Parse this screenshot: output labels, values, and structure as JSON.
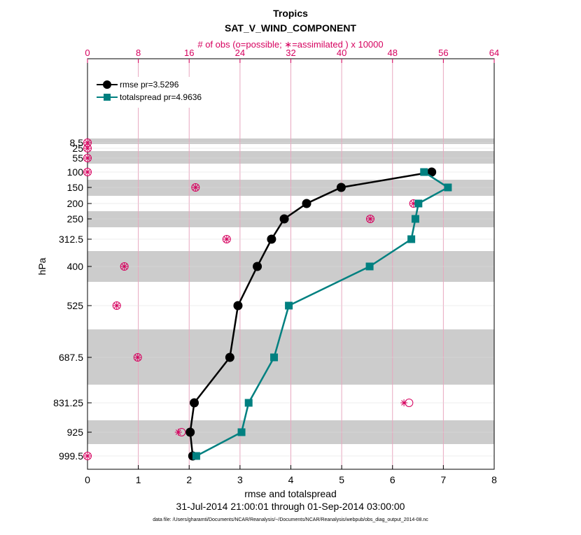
{
  "chart_data": {
    "type": "line",
    "title": "Tropics",
    "subtitle": "SAT_V_WIND_COMPONENT",
    "top_axis_label": "# of obs (o=possible; ∗=assimilated ) x 10000",
    "xlabel": "rmse and totalspread",
    "ylabel": "hPa",
    "date_range": "31-Jul-2014 21:00:01 through 01-Sep-2014 03:00:00",
    "data_file": "data file: /Users/gharamti/Documents/NCAR/Reanalysis/~/Documents/NCAR/Reanalysis/webpub/obs_diag_output_2014-08.nc",
    "xlim": [
      0,
      8
    ],
    "top_xlim": [
      0,
      64
    ],
    "x_ticks": [
      "0",
      "1",
      "2",
      "3",
      "4",
      "5",
      "6",
      "7",
      "8"
    ],
    "top_ticks": [
      "0",
      "8",
      "16",
      "24",
      "32",
      "40",
      "48",
      "56",
      "64"
    ],
    "levels": [
      "8.5",
      "25",
      "55",
      "100",
      "150",
      "200",
      "250",
      "312.5",
      "400",
      "525",
      "687.5",
      "831.25",
      "925",
      "999.5"
    ],
    "series": [
      {
        "name": "rmse  pr=3.5296",
        "color": "#000000",
        "marker": "circle",
        "points": [
          {
            "level": "100",
            "value": 6.77
          },
          {
            "level": "150",
            "value": 4.99
          },
          {
            "level": "200",
            "value": 4.31
          },
          {
            "level": "250",
            "value": 3.87
          },
          {
            "level": "312.5",
            "value": 3.62
          },
          {
            "level": "400",
            "value": 3.34
          },
          {
            "level": "525",
            "value": 2.96
          },
          {
            "level": "687.5",
            "value": 2.8
          },
          {
            "level": "831.25",
            "value": 2.1
          },
          {
            "level": "925",
            "value": 2.02
          },
          {
            "level": "999.5",
            "value": 2.07
          }
        ]
      },
      {
        "name": "totalspread  pr=4.9636",
        "color": "#008080",
        "marker": "square",
        "points": [
          {
            "level": "100",
            "value": 6.62
          },
          {
            "level": "150",
            "value": 7.09
          },
          {
            "level": "200",
            "value": 6.51
          },
          {
            "level": "250",
            "value": 6.45
          },
          {
            "level": "312.5",
            "value": 6.37
          },
          {
            "level": "400",
            "value": 5.55
          },
          {
            "level": "525",
            "value": 3.96
          },
          {
            "level": "687.5",
            "value": 3.67
          },
          {
            "level": "831.25",
            "value": 3.17
          },
          {
            "level": "925",
            "value": 3.03
          },
          {
            "level": "999.5",
            "value": 2.14
          }
        ]
      }
    ],
    "obs": [
      {
        "level": "8.5",
        "possible": 0.0,
        "assimilated": 0.0
      },
      {
        "level": "25",
        "possible": 0.0,
        "assimilated": 0.0
      },
      {
        "level": "55",
        "possible": 0.0,
        "assimilated": 0.0
      },
      {
        "level": "100",
        "possible": 0.0,
        "assimilated": 0.0
      },
      {
        "level": "150",
        "possible": 17.0,
        "assimilated": 17.0
      },
      {
        "level": "200",
        "possible": 51.3,
        "assimilated": 51.3
      },
      {
        "level": "250",
        "possible": 44.5,
        "assimilated": 44.5
      },
      {
        "level": "312.5",
        "possible": 21.9,
        "assimilated": 21.9
      },
      {
        "level": "400",
        "possible": 5.8,
        "assimilated": 5.8
      },
      {
        "level": "525",
        "possible": 4.6,
        "assimilated": 4.6
      },
      {
        "level": "687.5",
        "possible": 7.9,
        "assimilated": 7.9
      },
      {
        "level": "831.25",
        "possible": 50.6,
        "assimilated": 49.8
      },
      {
        "level": "925",
        "possible": 14.8,
        "assimilated": 14.3
      },
      {
        "level": "999.5",
        "possible": 0.0,
        "assimilated": 0.0
      }
    ],
    "colors": {
      "top_axis": "#d6005e",
      "grid": "#e8a7bf",
      "band": "#cccccc"
    }
  }
}
